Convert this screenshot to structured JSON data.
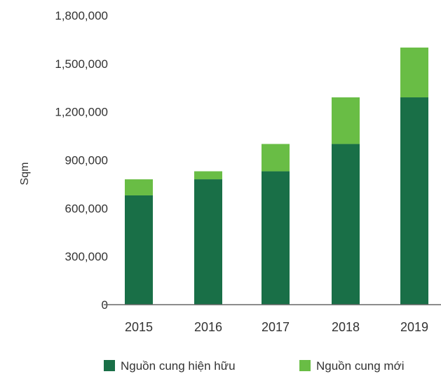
{
  "chart_data": {
    "type": "bar",
    "stacked": true,
    "categories": [
      "2015",
      "2016",
      "2017",
      "2018",
      "2019"
    ],
    "series": [
      {
        "name": "Nguồn cung hiện hữu",
        "values": [
          680000,
          780000,
          830000,
          1000000,
          1290000
        ],
        "color": "#196f47"
      },
      {
        "name": "Nguồn cung mới",
        "values": [
          100000,
          50000,
          170000,
          290000,
          310000
        ],
        "color": "#69bd45"
      }
    ],
    "ylabel": "Sqm",
    "xlabel": "",
    "ylim": [
      0,
      1800000
    ],
    "yticks": [
      "0",
      "300,000",
      "600,000",
      "900,000",
      "1,200,000",
      "1,500,000",
      "1,800,000"
    ],
    "grid": false,
    "legend_position": "bottom"
  }
}
